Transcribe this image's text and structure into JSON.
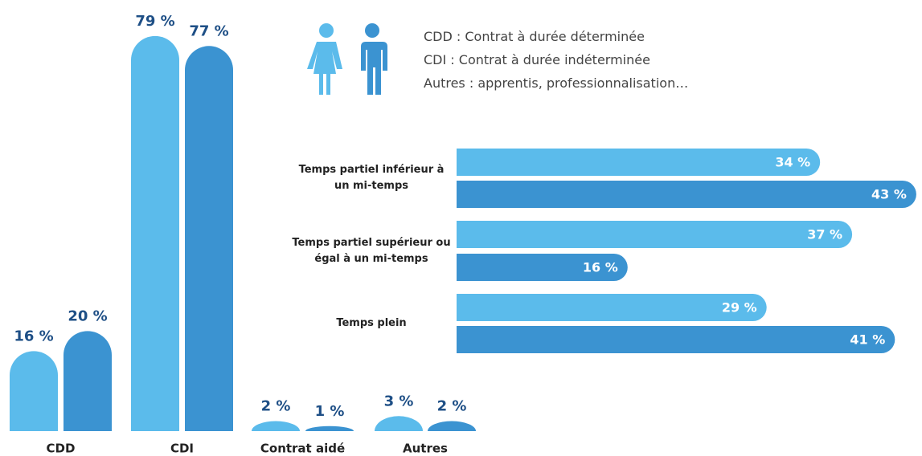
{
  "chart_data": [
    {
      "type": "bar",
      "categories": [
        "CDD",
        "CDI",
        "Contrat aidé",
        "Autres"
      ],
      "series": [
        {
          "color": "#5bbbeb",
          "values": [
            16,
            79,
            2,
            3
          ],
          "value_labels": [
            "16 %",
            "79 %",
            "2 %",
            "3 %"
          ]
        },
        {
          "color": "#3b93d1",
          "values": [
            20,
            77,
            1,
            2
          ],
          "value_labels": [
            "20 %",
            "77 %",
            "1 %",
            "2 %"
          ]
        }
      ],
      "notes": [
        "CDD : Contrat à durée déterminée",
        "CDI : Contrat à durée indéterminée",
        "Autres : apprentis, professionnalisation…"
      ]
    },
    {
      "type": "hbar",
      "categories": [
        "Temps partiel inférieur à un mi-temps",
        "Temps partiel supérieur ou égal à un mi-temps",
        "Temps plein"
      ],
      "series": [
        {
          "color": "#5bbbeb",
          "values": [
            34,
            37,
            29
          ],
          "value_labels": [
            "34 %",
            "37 %",
            "29 %"
          ]
        },
        {
          "color": "#3b93d1",
          "values": [
            43,
            16,
            41
          ],
          "value_labels": [
            "43 %",
            "16 %",
            "41 %"
          ]
        }
      ]
    }
  ]
}
